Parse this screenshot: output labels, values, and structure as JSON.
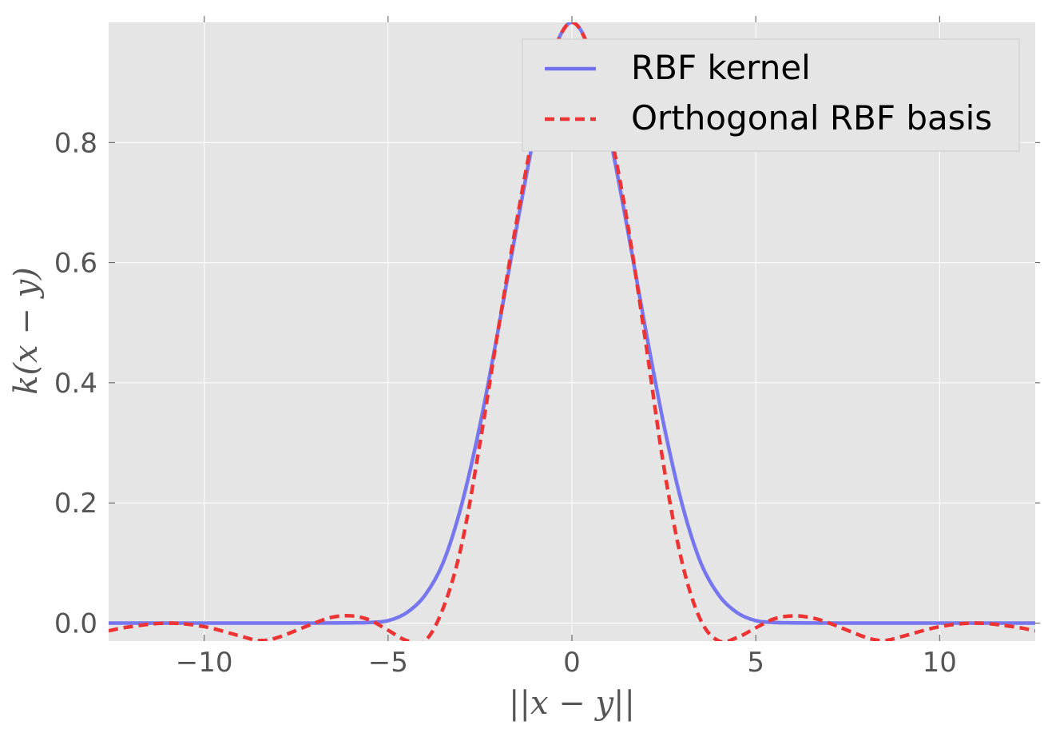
{
  "chart_data": {
    "type": "line",
    "xlabel": "||x − y||",
    "ylabel": "k(x − y)",
    "xlim": [
      -12.6,
      12.6
    ],
    "ylim": [
      -0.03,
      1.0
    ],
    "xticks": [
      -10,
      -5,
      0,
      5,
      10
    ],
    "xtick_labels": [
      "−10",
      "−5",
      "0",
      "5",
      "10"
    ],
    "yticks": [
      0.0,
      0.2,
      0.4,
      0.6,
      0.8
    ],
    "ytick_labels": [
      "0.0",
      "0.2",
      "0.4",
      "0.6",
      "0.8"
    ],
    "grid": true,
    "legend_position": "top-right",
    "background": "#e5e5e5",
    "series": [
      {
        "name": "RBF kernel",
        "style": "solid",
        "color": "#7070ee",
        "x": [
          -12.6,
          -11,
          -10,
          -9,
          -8,
          -7,
          -6,
          -5.5,
          -5,
          -4.5,
          -4,
          -3.5,
          -3,
          -2.5,
          -2,
          -1.5,
          -1,
          -0.5,
          0,
          0.5,
          1,
          1.5,
          2,
          2.5,
          3,
          3.5,
          4,
          4.5,
          5,
          5.5,
          6,
          7,
          8,
          9,
          10,
          11,
          12.6
        ],
        "y": [
          0,
          0,
          0,
          0,
          0,
          0,
          0.0003,
          0.001,
          0.004,
          0.017,
          0.046,
          0.101,
          0.197,
          0.33,
          0.49,
          0.66,
          0.82,
          0.95,
          1.0,
          0.95,
          0.82,
          0.66,
          0.49,
          0.33,
          0.197,
          0.101,
          0.046,
          0.017,
          0.004,
          0.001,
          0.0003,
          0,
          0,
          0,
          0,
          0,
          0
        ]
      },
      {
        "name": "Orthogonal RBF basis",
        "style": "dashed",
        "color": "#ee3333",
        "x": [
          -12.6,
          -12,
          -11,
          -10,
          -9,
          -8.5,
          -8,
          -7,
          -6.5,
          -6,
          -5.5,
          -5,
          -4.5,
          -4,
          -3.5,
          -3,
          -2.5,
          -2,
          -1.5,
          -1,
          -0.5,
          0,
          0.5,
          1,
          1.5,
          2,
          2.5,
          3,
          3.5,
          4,
          4.5,
          5,
          5.5,
          6,
          6.5,
          7,
          8,
          8.5,
          9,
          10,
          11,
          12,
          12.6
        ],
        "y": [
          -0.013,
          -0.006,
          0.0,
          -0.006,
          -0.022,
          -0.029,
          -0.024,
          0.0,
          0.01,
          0.012,
          0.005,
          -0.012,
          -0.029,
          -0.03,
          0.025,
          0.13,
          0.3,
          0.49,
          0.67,
          0.83,
          0.95,
          1.0,
          0.95,
          0.83,
          0.67,
          0.47,
          0.26,
          0.1,
          0.005,
          -0.03,
          -0.024,
          -0.008,
          0.007,
          0.012,
          0.009,
          0.0,
          -0.024,
          -0.029,
          -0.022,
          -0.006,
          0.0,
          -0.006,
          -0.013
        ]
      }
    ]
  }
}
